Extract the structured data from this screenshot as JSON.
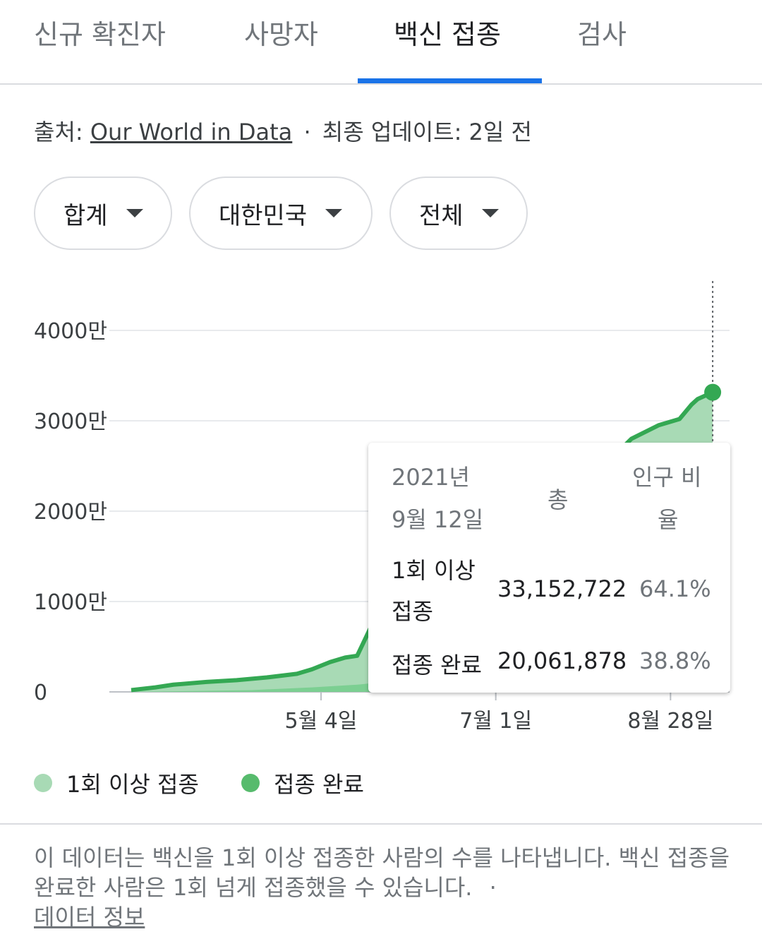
{
  "tabs": [
    {
      "label": "신규 확진자"
    },
    {
      "label": "사망자"
    },
    {
      "label": "백신 접종"
    },
    {
      "label": "검사"
    }
  ],
  "source": {
    "prefix": "출처: ",
    "link": "Our World in Data",
    "separator": "·",
    "updated": "최종 업데이트: 2일 전"
  },
  "filters": [
    {
      "label": "합계"
    },
    {
      "label": "대한민국"
    },
    {
      "label": "전체"
    }
  ],
  "tooltip": {
    "date_year": "2021년",
    "date_day": "9월 12일",
    "col_total": "총",
    "col_ratio_1": "인구 비",
    "col_ratio_2": "율",
    "row1_label_1": "1회 이상",
    "row1_label_2": "접종",
    "row1_total": "33,152,722",
    "row1_pct": "64.1%",
    "row2_label": "접종 완료",
    "row2_total": "20,061,878",
    "row2_pct": "38.8%"
  },
  "legend": {
    "first": "1회 이상 접종",
    "full": "접종 완료"
  },
  "footnote": {
    "text": "이 데이터는 백신을 1회 이상 접종한 사람의 수를 나타냅니다. 백신 접종을 완료한 사람은 1회 넘게 접종했을 수 있습니다.",
    "separator": "·",
    "link": "데이터 정보"
  },
  "colors": {
    "tab_indicator": "#1a73e8",
    "first_dose_line": "#34a853",
    "first_dose_fill": "#a8dab5",
    "full_dose_fill": "#7ccf92",
    "legend_first": "#a8dab5",
    "legend_full": "#57bb6d"
  },
  "chart_data": {
    "type": "area",
    "y_ticks": [
      "0",
      "1000만",
      "2000만",
      "3000만",
      "4000만"
    ],
    "y_tick_values": [
      0,
      10000000,
      20000000,
      30000000,
      40000000
    ],
    "ylim": [
      0,
      45000000
    ],
    "x_ticks": [
      "5월 4일",
      "7월 1일",
      "8월 28일"
    ],
    "x_tick_days": [
      63,
      121,
      179
    ],
    "x_range_days": [
      0,
      194
    ],
    "grid": true,
    "legend_position": "bottom-left",
    "series": [
      {
        "name": "1회 이상 접종",
        "x_days": [
          0,
          8,
          14,
          25,
          35,
          45,
          55,
          60,
          66,
          71,
          75,
          80,
          90,
          110,
          160,
          166,
          175,
          182,
          186,
          188,
          193
        ],
        "values": [
          200000,
          500000,
          800000,
          1100000,
          1300000,
          1600000,
          2000000,
          2500000,
          3300000,
          3800000,
          4000000,
          7500000,
          7800000,
          8100000,
          26000000,
          28000000,
          29500000,
          30200000,
          31800000,
          32400000,
          33152722
        ]
      },
      {
        "name": "접종 완료",
        "x_days": [
          0,
          40,
          60,
          75,
          90,
          110,
          140,
          160,
          175,
          185,
          193
        ],
        "values": [
          0,
          200000,
          500000,
          800000,
          1300000,
          2000000,
          4500000,
          8000000,
          12000000,
          16000000,
          20061878
        ]
      }
    ]
  }
}
